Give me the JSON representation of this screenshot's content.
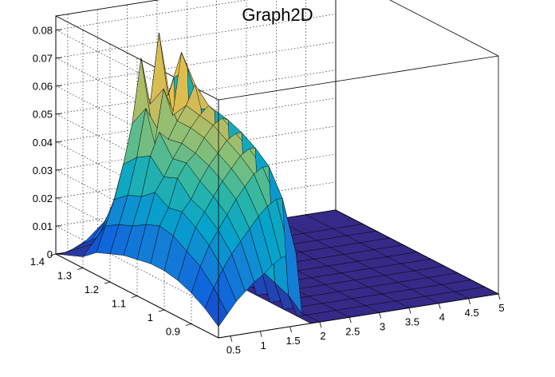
{
  "chart_data": {
    "type": "surface",
    "title": "Graph2D",
    "xlabel": "",
    "ylabel": "",
    "zlabel": "",
    "xlim": [
      0.3,
      5.0
    ],
    "ylim": [
      0.8,
      1.4
    ],
    "zlim": [
      0,
      0.085
    ],
    "grid": true,
    "x_ticks": [
      "0.5",
      "1",
      "1.5",
      "2",
      "2.5",
      "3",
      "3.5",
      "4",
      "4.5",
      "5"
    ],
    "y_ticks": [
      "0.9",
      "1",
      "1.1",
      "1.2",
      "1.3",
      "1.4"
    ],
    "z_ticks": [
      "0",
      "0.01",
      "0.02",
      "0.03",
      "0.04",
      "0.05",
      "0.06",
      "0.07",
      "0.08"
    ],
    "x_grid": [
      0.3,
      0.45,
      0.6,
      0.75,
      0.9,
      1.05,
      1.2,
      1.35,
      1.5,
      1.6,
      1.7,
      1.85,
      2.0,
      2.5,
      3.0,
      3.5,
      4.0,
      4.5,
      5.0
    ],
    "y_grid": [
      1.4,
      1.3,
      1.25,
      1.2,
      1.15,
      1.1,
      1.05,
      1.0,
      0.95,
      0.9,
      0.85,
      0.8
    ],
    "z_values": [
      [
        0.0,
        0.0,
        0.001,
        0.002,
        0.003,
        0.004,
        0.005,
        0.006,
        0.007,
        0.007,
        0.0,
        0.0,
        0.0,
        0.0,
        0.0,
        0.0,
        0.0,
        0.0,
        0.0
      ],
      [
        0.004,
        0.008,
        0.012,
        0.017,
        0.022,
        0.028,
        0.034,
        0.041,
        0.047,
        0.05,
        0.002,
        0.0,
        0.0,
        0.0,
        0.0,
        0.0,
        0.0,
        0.0,
        0.0
      ],
      [
        0.008,
        0.017,
        0.026,
        0.038,
        0.052,
        0.075,
        0.058,
        0.083,
        0.06,
        0.066,
        0.005,
        0.0,
        0.0,
        0.0,
        0.0,
        0.0,
        0.0,
        0.0,
        0.0
      ],
      [
        0.01,
        0.02,
        0.03,
        0.043,
        0.06,
        0.047,
        0.066,
        0.056,
        0.078,
        0.072,
        0.008,
        0.0,
        0.0,
        0.0,
        0.0,
        0.0,
        0.0,
        0.0,
        0.0
      ],
      [
        0.012,
        0.022,
        0.032,
        0.046,
        0.054,
        0.051,
        0.057,
        0.062,
        0.069,
        0.06,
        0.01,
        0.0,
        0.0,
        0.0,
        0.0,
        0.0,
        0.0,
        0.0,
        0.0
      ],
      [
        0.013,
        0.025,
        0.036,
        0.041,
        0.047,
        0.052,
        0.057,
        0.061,
        0.064,
        0.062,
        0.011,
        0.0,
        0.0,
        0.0,
        0.0,
        0.0,
        0.0,
        0.0,
        0.0
      ],
      [
        0.014,
        0.027,
        0.033,
        0.043,
        0.048,
        0.051,
        0.056,
        0.06,
        0.062,
        0.061,
        0.012,
        0.0,
        0.0,
        0.0,
        0.0,
        0.0,
        0.0,
        0.0,
        0.0
      ],
      [
        0.014,
        0.026,
        0.034,
        0.038,
        0.044,
        0.049,
        0.053,
        0.057,
        0.059,
        0.059,
        0.012,
        0.0,
        0.0,
        0.0,
        0.0,
        0.0,
        0.0,
        0.0,
        0.0
      ],
      [
        0.013,
        0.023,
        0.031,
        0.036,
        0.041,
        0.046,
        0.05,
        0.054,
        0.056,
        0.056,
        0.012,
        0.0,
        0.0,
        0.0,
        0.0,
        0.0,
        0.0,
        0.0,
        0.0
      ],
      [
        0.011,
        0.02,
        0.027,
        0.032,
        0.037,
        0.042,
        0.046,
        0.05,
        0.052,
        0.052,
        0.01,
        0.0,
        0.0,
        0.0,
        0.0,
        0.0,
        0.0,
        0.0,
        0.0
      ],
      [
        0.008,
        0.015,
        0.021,
        0.026,
        0.03,
        0.034,
        0.038,
        0.041,
        0.043,
        0.043,
        0.008,
        0.0,
        0.0,
        0.0,
        0.0,
        0.0,
        0.0,
        0.0,
        0.0
      ],
      [
        0.004,
        0.008,
        0.012,
        0.015,
        0.018,
        0.02,
        0.023,
        0.025,
        0.026,
        0.026,
        0.004,
        0.0,
        0.0,
        0.0,
        0.0,
        0.0,
        0.0,
        0.0,
        0.0
      ]
    ],
    "colormap": [
      "#352a87",
      "#0f5cdd",
      "#1481d6",
      "#06a4ca",
      "#2eb7a4",
      "#87bf77",
      "#d1bb59",
      "#fec832",
      "#f9fb0e"
    ]
  }
}
